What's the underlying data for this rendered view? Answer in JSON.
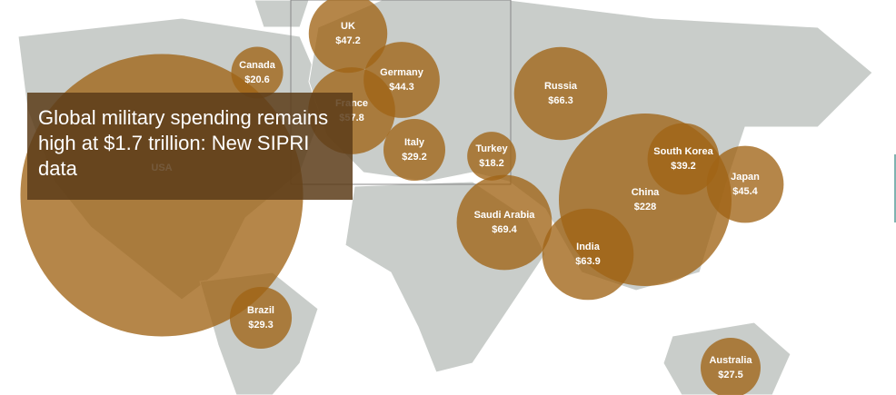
{
  "title": "Global military spending remains high at $1.7 trillion: New SIPRI data",
  "bubbles": [
    {
      "country": "USA",
      "value": 611
    },
    {
      "country": "Canada",
      "value": 20.6,
      "value_label": "$20.6"
    },
    {
      "country": "UK",
      "value": 47.2,
      "value_label": "$47.2"
    },
    {
      "country": "Germany",
      "value": 44.3,
      "value_label": "$44.3"
    },
    {
      "country": "France",
      "value": 57.8,
      "value_label": "$57.8"
    },
    {
      "country": "Italy",
      "value": 29.2,
      "value_label": "$29.2"
    },
    {
      "country": "Turkey",
      "value": 18.2,
      "value_label": "$18.2"
    },
    {
      "country": "Saudi Arabia",
      "value": 69.4,
      "value_label": "$69.4"
    },
    {
      "country": "Russia",
      "value": 66.3,
      "value_label": "$66.3"
    },
    {
      "country": "China",
      "value": 228,
      "value_label": "$228"
    },
    {
      "country": "South Korea",
      "value": 39.2,
      "value_label": "$39.2"
    },
    {
      "country": "Japan",
      "value": 45.4,
      "value_label": "$45.4"
    },
    {
      "country": "India",
      "value": 63.9,
      "value_label": "$63.9"
    },
    {
      "country": "Brazil",
      "value": 29.3,
      "value_label": "$29.3"
    },
    {
      "country": "Australia",
      "value": 27.5,
      "value_label": "$27.5"
    }
  ]
}
